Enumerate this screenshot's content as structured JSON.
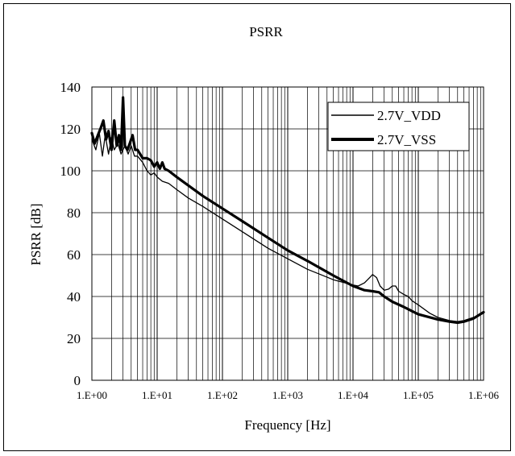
{
  "chart_data": {
    "type": "line",
    "title": "PSRR",
    "xlabel": "Frequency [Hz]",
    "ylabel": "PSRR [dB]",
    "x_scale": "log",
    "xlim": [
      1,
      1000000
    ],
    "ylim": [
      0,
      140
    ],
    "x_ticks": [
      "1.E+00",
      "1.E+01",
      "1.E+02",
      "1.E+03",
      "1.E+04",
      "1.E+05",
      "1.E+06"
    ],
    "y_ticks": [
      "0",
      "20",
      "40",
      "60",
      "80",
      "100",
      "120",
      "140"
    ],
    "grid": true,
    "legend_position": "top-right",
    "series": [
      {
        "name": "2.7V_VDD",
        "line_style": "thin",
        "points": [
          [
            1,
            115
          ],
          [
            1.15,
            110
          ],
          [
            1.3,
            118
          ],
          [
            1.45,
            107
          ],
          [
            1.6,
            117
          ],
          [
            1.8,
            108
          ],
          [
            2.0,
            116
          ],
          [
            2.2,
            110
          ],
          [
            2.5,
            113
          ],
          [
            2.8,
            108
          ],
          [
            3.2,
            112
          ],
          [
            3.6,
            108
          ],
          [
            4.0,
            112
          ],
          [
            4.5,
            107
          ],
          [
            5.0,
            107
          ],
          [
            6.0,
            104
          ],
          [
            7.0,
            100
          ],
          [
            8.0,
            98
          ],
          [
            9.0,
            99
          ],
          [
            10,
            97
          ],
          [
            12,
            95
          ],
          [
            15,
            94
          ],
          [
            20,
            91
          ],
          [
            30,
            87
          ],
          [
            50,
            83
          ],
          [
            100,
            77
          ],
          [
            200,
            71
          ],
          [
            500,
            63
          ],
          [
            1000,
            58
          ],
          [
            2000,
            53
          ],
          [
            5000,
            48
          ],
          [
            10000,
            45.5
          ],
          [
            12000,
            45
          ],
          [
            15000,
            46.5
          ],
          [
            18000,
            49
          ],
          [
            20000,
            50.5
          ],
          [
            23000,
            49
          ],
          [
            26000,
            45
          ],
          [
            30000,
            43
          ],
          [
            35000,
            43.5
          ],
          [
            40000,
            45
          ],
          [
            45000,
            45
          ],
          [
            50000,
            42.5
          ],
          [
            60000,
            41
          ],
          [
            70000,
            40
          ],
          [
            80000,
            38
          ],
          [
            100000,
            36
          ],
          [
            150000,
            32
          ],
          [
            200000,
            30
          ],
          [
            300000,
            28.5
          ],
          [
            400000,
            28
          ],
          [
            500000,
            28.5
          ],
          [
            700000,
            30
          ],
          [
            1000000,
            32
          ]
        ]
      },
      {
        "name": "2.7V_VSS",
        "line_style": "thick",
        "points": [
          [
            1,
            118
          ],
          [
            1.1,
            113
          ],
          [
            1.2,
            116
          ],
          [
            1.35,
            120
          ],
          [
            1.5,
            124
          ],
          [
            1.65,
            115
          ],
          [
            1.8,
            119
          ],
          [
            2.0,
            110
          ],
          [
            2.2,
            124
          ],
          [
            2.4,
            112
          ],
          [
            2.6,
            117
          ],
          [
            2.8,
            110
          ],
          [
            3.0,
            135
          ],
          [
            3.2,
            112
          ],
          [
            3.5,
            110
          ],
          [
            3.8,
            113
          ],
          [
            4.2,
            117
          ],
          [
            4.6,
            110
          ],
          [
            5,
            110
          ],
          [
            6,
            106
          ],
          [
            7,
            106
          ],
          [
            8,
            105
          ],
          [
            9,
            102
          ],
          [
            10,
            104
          ],
          [
            11,
            101
          ],
          [
            12,
            104
          ],
          [
            13,
            101
          ],
          [
            15,
            100
          ],
          [
            20,
            97
          ],
          [
            30,
            93
          ],
          [
            50,
            88
          ],
          [
            100,
            82
          ],
          [
            200,
            76
          ],
          [
            500,
            68
          ],
          [
            1000,
            62
          ],
          [
            2000,
            57
          ],
          [
            5000,
            50
          ],
          [
            10000,
            45
          ],
          [
            15000,
            43
          ],
          [
            20000,
            42.5
          ],
          [
            25000,
            42
          ],
          [
            30000,
            40
          ],
          [
            40000,
            37.5
          ],
          [
            60000,
            35
          ],
          [
            100000,
            31.5
          ],
          [
            200000,
            29
          ],
          [
            300000,
            28
          ],
          [
            400000,
            27.5
          ],
          [
            500000,
            28
          ],
          [
            700000,
            29.5
          ],
          [
            1000000,
            32.5
          ]
        ]
      }
    ]
  }
}
